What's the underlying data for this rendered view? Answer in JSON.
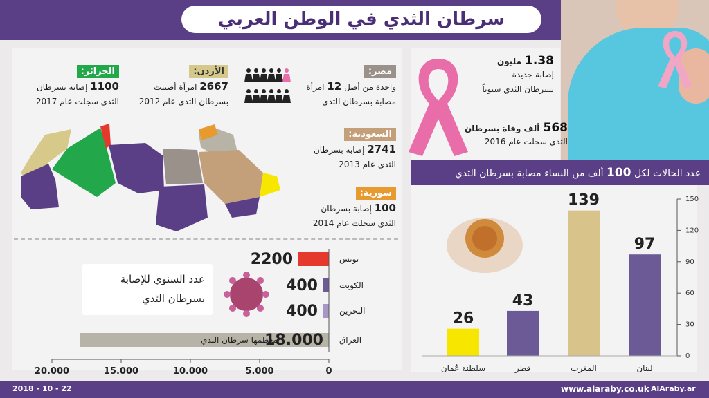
{
  "title": "سرطان الثدي في الوطن العربي",
  "date": "2018 - 10 - 22",
  "footer": {
    "site": "www.alaraby.co.uk",
    "social": "AlAraby.ar"
  },
  "global": {
    "new_cases_value": "1.38",
    "new_cases_unit": "مليون",
    "new_cases_text1": "إصابة جديدة",
    "new_cases_text2": "بسرطان الثدي سنوياً",
    "deaths_value": "568",
    "deaths_unit": "ألف وفاة بسرطان",
    "deaths_text": "الثدي سجلت عام 2016"
  },
  "countries": {
    "egypt": {
      "name": "مصر:",
      "line1_pre": "واحدة من أصل",
      "line1_num": "12",
      "line1_post": "امرأة",
      "line2": "مصابة بسرطان الثدي"
    },
    "jordan": {
      "name": "الأردن:",
      "num": "2667",
      "line1": "امرأة أصيبت",
      "line2": "بسرطان الثدي عام 2012"
    },
    "algeria": {
      "name": "الجزائر:",
      "num": "1100",
      "line1": "إصابة بسرطان",
      "line2": "الثدي سجلت عام 2017"
    },
    "saudi": {
      "name": "السعودية:",
      "num": "2741",
      "line1": "إصابة بسرطان",
      "line2": "الثدي عام 2013"
    },
    "syria": {
      "name": "سورية:",
      "num": "100",
      "line1": "إصابة بسرطان",
      "line2": "الثدي سجلت عام 2014"
    }
  },
  "colors": {
    "purple": "#5b3f86",
    "orange": "#e79a2d",
    "green": "#22a84b",
    "beige": "#d6c98a",
    "tan": "#c4a07a",
    "yellow": "#f7e600",
    "red": "#e6392e",
    "pink": "#e96da8",
    "gray": "#b7b3a7"
  },
  "rate_chart_title_pre": "عدد الحالات لكل",
  "rate_chart_title_num": "100",
  "rate_chart_title_post": "ألف من النساء مصابة بسرطان الثدي",
  "annual_box": {
    "line1": "عدد السنوي للإصابة",
    "line2": "بسرطان الثدي"
  },
  "iraq_note": "معظمها سرطان الثدي",
  "chart_data": [
    {
      "type": "bar",
      "title": "عدد الحالات لكل 100 ألف من النساء مصابة بسرطان الثدي",
      "categories": [
        "لبنان",
        "المغرب",
        "قطر",
        "سلطنة عُمان"
      ],
      "values": [
        97,
        139,
        43,
        26
      ],
      "value_labels": [
        "97",
        "139",
        "43",
        "26"
      ],
      "bar_colors": [
        "#6c5a96",
        "#d8c48b",
        "#6c5a96",
        "#f7e600"
      ],
      "ylim": [
        0,
        150
      ],
      "yticks": [
        "0",
        "30",
        "60",
        "90",
        "120",
        "150"
      ],
      "grid": false
    },
    {
      "type": "bar",
      "orientation": "horizontal",
      "title": "عدد السنوي للإصابة بسرطان الثدي",
      "categories": [
        "تونس",
        "الكويت",
        "البحرين",
        "العراق"
      ],
      "values": [
        2200,
        400,
        400,
        18000
      ],
      "value_labels": [
        "2200",
        "400",
        "400",
        "18.000"
      ],
      "bar_colors": [
        "#e6392e",
        "#6c5a96",
        "#a896c6",
        "#b7b3a7"
      ],
      "xlim": [
        0,
        20000
      ],
      "xticks": [
        "0",
        "5.000",
        "10.000",
        "15.000",
        "20.000"
      ],
      "grid": false
    }
  ]
}
